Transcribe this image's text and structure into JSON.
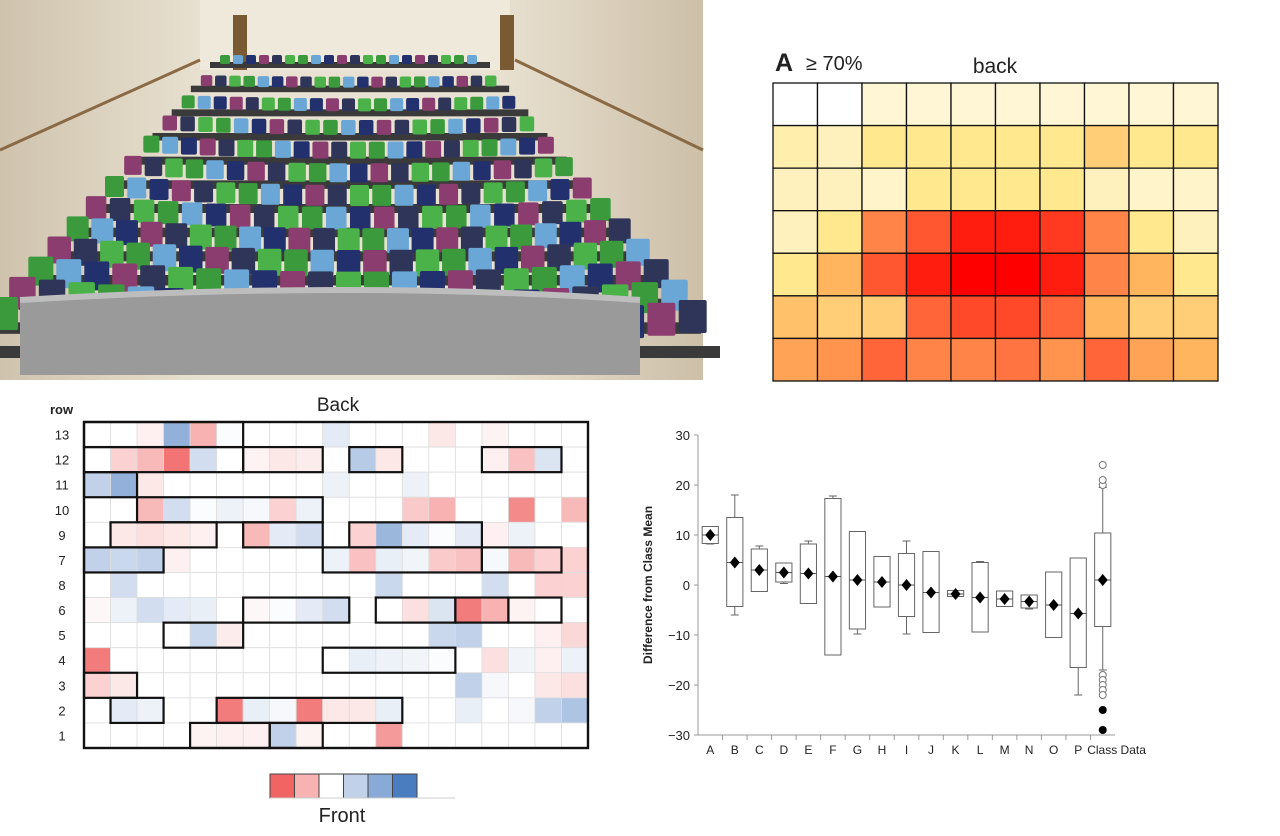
{
  "photo": {
    "subject": "lecture theatre seating",
    "seat_colors": [
      "#3a9a3c",
      "#6aa7d6",
      "#23306e",
      "#8a3d6e",
      "#2f3558",
      "#4bb24a"
    ]
  },
  "chart_data": [
    {
      "type": "heatmap",
      "label": "A",
      "subtitle": "≥ 70%",
      "top_label": "back",
      "rows": 7,
      "cols": 10,
      "scale": [
        0,
        1
      ],
      "colors": {
        "low": "#ffffff",
        "high": "#ff0000"
      },
      "values": [
        [
          0,
          0,
          0.08,
          0.08,
          0.08,
          0.08,
          0.08,
          0.08,
          0.08,
          0.08
        ],
        [
          0.15,
          0.12,
          0.2,
          0.2,
          0.2,
          0.2,
          0.2,
          0.3,
          0.2,
          0.2
        ],
        [
          0.12,
          0.12,
          0.1,
          0.2,
          0.2,
          0.2,
          0.2,
          0.12,
          0.1,
          0.1
        ],
        [
          0.12,
          0.2,
          0.55,
          0.7,
          0.9,
          0.9,
          0.8,
          0.55,
          0.2,
          0.12
        ],
        [
          0.2,
          0.4,
          0.7,
          0.9,
          1,
          1,
          0.9,
          0.55,
          0.4,
          0.2
        ],
        [
          0.35,
          0.3,
          0.3,
          0.65,
          0.75,
          0.75,
          0.65,
          0.4,
          0.3,
          0.3
        ],
        [
          0.45,
          0.5,
          0.65,
          0.55,
          0.55,
          0.6,
          0.5,
          0.65,
          0.45,
          0.4
        ]
      ]
    },
    {
      "type": "heatmap",
      "row_axis_label": "row",
      "top_label": "Back",
      "bottom_label": "Front",
      "row_labels": [
        "13",
        "12",
        "11",
        "10",
        "9",
        "7",
        "8",
        "6",
        "5",
        "4",
        "3",
        "2",
        "1"
      ],
      "cols": 19,
      "scale": [
        -1,
        1
      ],
      "colors": {
        "negative": "#f06464",
        "neutral": "#ffffff",
        "positive": "#4a7cc0"
      },
      "legend_steps": [
        -1,
        -0.5,
        0,
        0.35,
        0.65,
        1
      ],
      "values": [
        [
          0,
          0,
          -0.1,
          0.6,
          -0.5,
          0.02,
          0,
          0,
          0,
          0.15,
          0,
          0,
          0,
          -0.15,
          0,
          -0.08,
          0,
          0,
          0
        ],
        [
          0,
          -0.3,
          -0.45,
          -0.9,
          0.25,
          0,
          -0.08,
          -0.15,
          -0.12,
          0,
          0.4,
          -0.15,
          0,
          0,
          0,
          -0.1,
          -0.4,
          0.2,
          0
        ],
        [
          0.35,
          0.6,
          -0.15,
          0,
          0,
          0,
          0,
          0,
          0,
          0.1,
          0,
          0,
          0.1,
          0,
          0,
          0,
          0,
          0,
          0
        ],
        [
          0,
          0,
          -0.45,
          0.25,
          0.02,
          0.1,
          0.05,
          -0.3,
          0.1,
          0,
          0,
          0,
          -0.35,
          -0.5,
          0,
          0,
          -0.75,
          0,
          -0.45
        ],
        [
          0,
          -0.15,
          -0.2,
          -0.15,
          -0.1,
          0,
          -0.45,
          0.15,
          0.25,
          0,
          -0.3,
          0.55,
          0.15,
          0.02,
          0.15,
          -0.1,
          0.1,
          0,
          0
        ],
        [
          0.35,
          0.3,
          0.35,
          -0.1,
          0,
          0,
          0,
          0,
          0,
          0.1,
          -0.4,
          0.12,
          0.08,
          -0.35,
          -0.4,
          0.05,
          -0.45,
          -0.3,
          -0.3
        ],
        [
          0,
          0.25,
          0,
          0,
          0,
          0,
          0,
          0,
          0,
          0,
          0,
          0.3,
          0,
          0,
          0,
          0.25,
          0,
          -0.3,
          -0.3
        ],
        [
          -0.05,
          0.1,
          0.25,
          0.15,
          0.12,
          0,
          -0.05,
          0.02,
          0.15,
          0.25,
          0,
          0,
          -0.2,
          0.2,
          -0.85,
          -0.5,
          -0.08,
          0,
          0
        ],
        [
          0,
          0,
          0,
          0,
          0.3,
          -0.12,
          0,
          0,
          0,
          0,
          0,
          0,
          0,
          0.3,
          0.35,
          0,
          0,
          -0.1,
          -0.25
        ],
        [
          -0.85,
          0,
          0,
          0,
          0,
          0,
          0,
          0,
          0,
          0,
          0.12,
          0.1,
          0.08,
          0.02,
          0,
          -0.2,
          0.08,
          -0.1,
          0.1
        ],
        [
          -0.3,
          -0.15,
          0,
          0,
          0,
          0,
          0,
          0,
          0,
          0,
          0,
          0,
          0,
          0,
          0.35,
          0.05,
          0,
          -0.15,
          -0.2
        ],
        [
          0,
          0.15,
          0.1,
          0,
          0,
          -0.85,
          0.12,
          0.05,
          -0.85,
          -0.15,
          -0.15,
          0.12,
          0,
          0,
          0.12,
          0,
          0.05,
          0.35,
          0.45
        ],
        [
          0,
          0,
          0,
          0,
          -0.08,
          -0.1,
          -0.1,
          0.35,
          -0.08,
          0,
          0,
          -0.65,
          0,
          0,
          0,
          0,
          0,
          0,
          0
        ]
      ],
      "groups": [
        {
          "row": "13",
          "from": 1,
          "to": 6
        },
        {
          "row": "12",
          "from": 1,
          "to": 6
        },
        {
          "row": "12",
          "from": 7,
          "to": 9
        },
        {
          "row": "12",
          "from": 11,
          "to": 12
        },
        {
          "row": "12",
          "from": 16,
          "to": 18
        },
        {
          "row": "11",
          "from": 1,
          "to": 2
        },
        {
          "row": "10",
          "from": 3,
          "to": 9
        },
        {
          "row": "9",
          "from": 2,
          "to": 5
        },
        {
          "row": "9",
          "from": 7,
          "to": 9
        },
        {
          "row": "9",
          "from": 11,
          "to": 15
        },
        {
          "row": "7",
          "from": 1,
          "to": 3
        },
        {
          "row": "7",
          "from": 10,
          "to": 15
        },
        {
          "row": "7",
          "from": 16,
          "to": 18
        },
        {
          "row": "6",
          "from": 7,
          "to": 10
        },
        {
          "row": "6",
          "from": 12,
          "to": 14
        },
        {
          "row": "6",
          "from": 15,
          "to": 16
        },
        {
          "row": "6",
          "from": 17,
          "to": 18
        },
        {
          "row": "5",
          "from": 4,
          "to": 6
        },
        {
          "row": "4",
          "from": 10,
          "to": 14
        },
        {
          "row": "3",
          "from": 1,
          "to": 2
        },
        {
          "row": "2",
          "from": 2,
          "to": 3
        },
        {
          "row": "2",
          "from": 6,
          "to": 12
        },
        {
          "row": "1",
          "from": 5,
          "to": 7
        },
        {
          "row": "1",
          "from": 8,
          "to": 9
        }
      ]
    },
    {
      "type": "box",
      "ylabel": "Difference from Class Mean",
      "ylim": [
        -30,
        30
      ],
      "yticks": [
        30,
        20,
        10,
        0,
        -10,
        -20,
        -30
      ],
      "categories": [
        "A",
        "B",
        "C",
        "D",
        "E",
        "F",
        "G",
        "H",
        "I",
        "J",
        "K",
        "L",
        "M",
        "N",
        "O",
        "P",
        "Class Data"
      ],
      "boxes": [
        {
          "min": 8.2,
          "q1": 8.3,
          "median": 10,
          "q3": 11.7,
          "max": 11.7,
          "mean": 10
        },
        {
          "min": -6,
          "q1": -4.3,
          "median": 4.5,
          "q3": 13.5,
          "max": 18,
          "mean": 4.5
        },
        {
          "min": -1.3,
          "q1": -1.3,
          "median": 3,
          "q3": 7.2,
          "max": 7.8,
          "mean": 3
        },
        {
          "min": 0.3,
          "q1": 0.6,
          "median": 2.5,
          "q3": 4.4,
          "max": 4.4,
          "mean": 2.5
        },
        {
          "min": -3.7,
          "q1": -3.7,
          "median": 2.3,
          "q3": 8.2,
          "max": 8.8,
          "mean": 2.3
        },
        {
          "min": -14,
          "q1": -14,
          "median": 1.7,
          "q3": 17.3,
          "max": 17.8,
          "mean": 1.7
        },
        {
          "min": -9.8,
          "q1": -8.8,
          "median": 1,
          "q3": 10.7,
          "max": 10.7,
          "mean": 1
        },
        {
          "min": -4.4,
          "q1": -4.4,
          "median": 0.6,
          "q3": 5.7,
          "max": 5.7,
          "mean": 0.6
        },
        {
          "min": -9.8,
          "q1": -6.3,
          "median": 0,
          "q3": 6.3,
          "max": 8.8,
          "mean": 0
        },
        {
          "min": -9.5,
          "q1": -9.5,
          "median": -1.5,
          "q3": 6.7,
          "max": 6.7,
          "mean": -1.5
        },
        {
          "min": -2.3,
          "q1": -2.3,
          "median": -1.8,
          "q3": -1.1,
          "max": -1.1,
          "mean": -1.8
        },
        {
          "min": -9.4,
          "q1": -9.4,
          "median": -2.5,
          "q3": 4.5,
          "max": 4.7,
          "mean": -2.5
        },
        {
          "min": -4.3,
          "q1": -4.3,
          "median": -2.8,
          "q3": -1.2,
          "max": -1.2,
          "mean": -2.8
        },
        {
          "min": -4.8,
          "q1": -4.6,
          "median": -3.3,
          "q3": -2,
          "max": -2,
          "mean": -3.3
        },
        {
          "min": -10.5,
          "q1": -10.5,
          "median": -4,
          "q3": 2.6,
          "max": 2.6,
          "mean": -4
        },
        {
          "min": -22,
          "q1": -16.5,
          "median": -5.7,
          "q3": 5.4,
          "max": 5.4,
          "mean": -5.7
        },
        {
          "min": -17,
          "q1": -8.3,
          "median": 1,
          "q3": 10.4,
          "max": 19.5,
          "mean": 1
        }
      ],
      "outliers_open": [
        20,
        21,
        24,
        -18,
        -19,
        -20,
        -21,
        -22
      ],
      "outliers_filled": [
        -25,
        -29
      ]
    }
  ]
}
